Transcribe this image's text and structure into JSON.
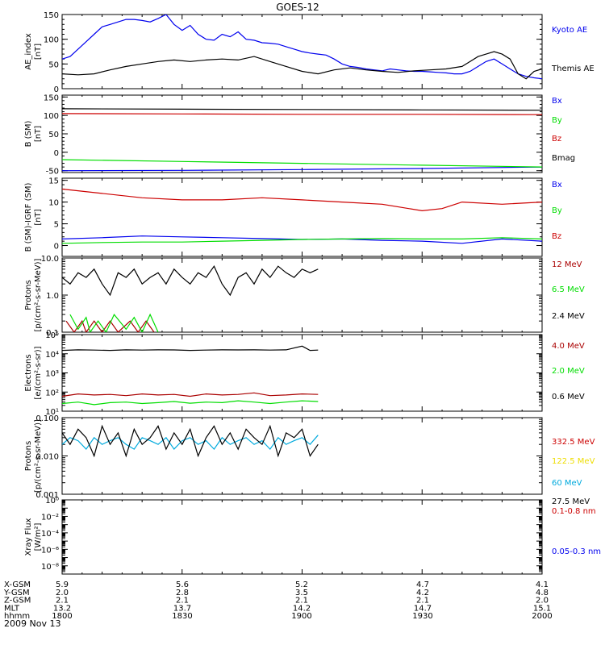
{
  "title": "GOES-12",
  "date_label": "2009 Nov 13",
  "ephemeris": {
    "rows": [
      {
        "label": "X-GSM",
        "values": [
          "5.9",
          "5.6",
          "5.2",
          "4.7",
          "4.1"
        ]
      },
      {
        "label": "Y-GSM",
        "values": [
          "2.0",
          "2.8",
          "3.5",
          "4.2",
          "4.8"
        ]
      },
      {
        "label": "Z-GSM",
        "values": [
          "2.1",
          "2.1",
          "2.1",
          "2.1",
          "2.0"
        ]
      },
      {
        "label": "MLT",
        "values": [
          "13.2",
          "13.7",
          "14.2",
          "14.7",
          "15.1"
        ]
      },
      {
        "label": "hhmm",
        "values": [
          "1800",
          "1830",
          "1900",
          "1930",
          "2000"
        ]
      }
    ]
  },
  "chart_data": [
    {
      "type": "line",
      "ylabel": [
        "AE_index",
        "[nT]"
      ],
      "x_range_minutes": [
        0,
        120
      ],
      "ylim": [
        0,
        150
      ],
      "yticks": [
        0,
        50,
        100,
        150
      ],
      "ytick_labels": [
        "0",
        "50",
        "100",
        "150"
      ],
      "series": [
        {
          "name": "Kyoto AE",
          "color": "#0000ee",
          "x": [
            0,
            2,
            4,
            6,
            8,
            10,
            12,
            14,
            16,
            18,
            20,
            22,
            24,
            26,
            28,
            30,
            32,
            34,
            36,
            38,
            40,
            42,
            44,
            46,
            48,
            50,
            52,
            54,
            56,
            58,
            60,
            62,
            64,
            66,
            68,
            70,
            72,
            74,
            76,
            78,
            80,
            82,
            84,
            86,
            88,
            90,
            92,
            94,
            96,
            98,
            100,
            102,
            104,
            106,
            108,
            110,
            112,
            114,
            116,
            118,
            120
          ],
          "y": [
            60,
            65,
            80,
            95,
            110,
            125,
            130,
            135,
            140,
            140,
            138,
            135,
            142,
            150,
            130,
            118,
            128,
            110,
            100,
            98,
            110,
            105,
            115,
            100,
            98,
            93,
            92,
            90,
            85,
            80,
            75,
            72,
            70,
            68,
            60,
            50,
            45,
            43,
            40,
            38,
            36,
            40,
            38,
            36,
            35,
            35,
            34,
            33,
            32,
            30,
            30,
            35,
            45,
            55,
            60,
            50,
            40,
            30,
            25,
            22,
            20
          ]
        },
        {
          "name": "Themis AE",
          "color": "#000000",
          "x": [
            0,
            4,
            8,
            12,
            16,
            20,
            24,
            28,
            32,
            36,
            40,
            44,
            48,
            52,
            56,
            60,
            64,
            68,
            72,
            76,
            80,
            84,
            88,
            92,
            96,
            100,
            102,
            104,
            106,
            108,
            110,
            112,
            114,
            116,
            118,
            120
          ],
          "y": [
            30,
            28,
            30,
            38,
            45,
            50,
            55,
            58,
            55,
            58,
            60,
            58,
            65,
            55,
            45,
            35,
            30,
            38,
            42,
            38,
            35,
            33,
            36,
            38,
            40,
            45,
            55,
            65,
            70,
            75,
            70,
            60,
            30,
            20,
            35,
            40
          ]
        }
      ]
    },
    {
      "type": "line",
      "ylabel": [
        "B (SM)",
        "[nT]"
      ],
      "x_range_minutes": [
        0,
        120
      ],
      "ylim": [
        -55,
        155
      ],
      "yticks": [
        -50,
        0,
        50,
        100,
        150
      ],
      "ytick_labels": [
        "-50",
        "0",
        "50",
        "100",
        "150"
      ],
      "series": [
        {
          "name": "Bx",
          "color": "#0000ee",
          "x": [
            0,
            30,
            60,
            90,
            120
          ],
          "y": [
            -50,
            -49,
            -47,
            -44,
            -40
          ]
        },
        {
          "name": "By",
          "color": "#00dd00",
          "x": [
            0,
            30,
            60,
            90,
            120
          ],
          "y": [
            -20,
            -25,
            -30,
            -35,
            -40
          ]
        },
        {
          "name": "Bz",
          "color": "#cc0000",
          "x": [
            0,
            30,
            60,
            90,
            120
          ],
          "y": [
            105,
            104,
            103,
            103,
            102
          ]
        },
        {
          "name": "Bmag",
          "color": "#000000",
          "x": [
            0,
            30,
            60,
            90,
            120
          ],
          "y": [
            118,
            117,
            116,
            115,
            114
          ]
        }
      ]
    },
    {
      "type": "line",
      "ylabel": [
        "B (SM)-IGRF (SM)",
        "[nT]"
      ],
      "x_range_minutes": [
        0,
        120
      ],
      "ylim": [
        -2.5,
        15.5
      ],
      "yticks": [
        0,
        5,
        10,
        15
      ],
      "ytick_labels": [
        "0",
        "5",
        "10",
        "15"
      ],
      "series": [
        {
          "name": "Bx",
          "color": "#0000ee",
          "x": [
            0,
            10,
            20,
            30,
            40,
            50,
            60,
            70,
            80,
            90,
            100,
            110,
            120
          ],
          "y": [
            1.5,
            1.8,
            2.2,
            2.0,
            1.8,
            1.6,
            1.4,
            1.5,
            1.2,
            1.0,
            0.5,
            1.5,
            1.0
          ]
        },
        {
          "name": "By",
          "color": "#00dd00",
          "x": [
            0,
            10,
            20,
            30,
            40,
            50,
            60,
            70,
            80,
            90,
            100,
            110,
            120
          ],
          "y": [
            0.5,
            0.7,
            0.8,
            0.8,
            1.0,
            1.2,
            1.4,
            1.5,
            1.6,
            1.5,
            1.5,
            1.8,
            1.5
          ]
        },
        {
          "name": "Bz",
          "color": "#cc0000",
          "x": [
            0,
            10,
            20,
            30,
            40,
            50,
            60,
            70,
            80,
            90,
            95,
            100,
            110,
            120
          ],
          "y": [
            13,
            12,
            11,
            10.5,
            10.5,
            11,
            10.5,
            10,
            9.5,
            8,
            8.5,
            10,
            9.5,
            10
          ]
        }
      ]
    },
    {
      "type": "line",
      "scale": "log",
      "ylabel": [
        "Protons",
        "[p/(cm²-s-sr-MeV)]"
      ],
      "x_range_minutes": [
        0,
        120
      ],
      "ylim": [
        0.1,
        10
      ],
      "yticks": [
        0.1,
        1,
        10
      ],
      "ytick_labels": [
        "0.1",
        "1.0",
        "10.0"
      ],
      "series": [
        {
          "name": "12 MeV",
          "color": "#aa0000",
          "x": [
            1,
            3,
            5,
            6,
            8,
            10,
            12,
            14,
            17,
            19,
            21,
            23
          ],
          "y": [
            0.2,
            0.1,
            0.2,
            0.1,
            0.2,
            0.1,
            0.2,
            0.1,
            0.2,
            0.1,
            0.2,
            0.1
          ]
        },
        {
          "name": "6.5 MeV",
          "color": "#00dd00",
          "x": [
            2,
            4,
            6,
            7,
            9,
            11,
            13,
            16,
            18,
            20,
            22,
            24
          ],
          "y": [
            0.3,
            0.12,
            0.25,
            0.1,
            0.2,
            0.1,
            0.3,
            0.12,
            0.25,
            0.1,
            0.3,
            0.1
          ]
        },
        {
          "name": "2.4 MeV",
          "color": "#000000",
          "x": [
            0,
            2,
            4,
            6,
            8,
            10,
            12,
            14,
            16,
            18,
            20,
            22,
            24,
            26,
            28,
            30,
            32,
            34,
            36,
            38,
            40,
            42,
            44,
            46,
            48,
            50,
            52,
            54,
            56,
            58,
            60,
            62,
            64
          ],
          "y": [
            3,
            2,
            4,
            3,
            5,
            2,
            1,
            4,
            3,
            5,
            2,
            3,
            4,
            2,
            5,
            3,
            2,
            4,
            3,
            6,
            2,
            1,
            3,
            4,
            2,
            5,
            3,
            6,
            4,
            3,
            5,
            4,
            5
          ]
        }
      ]
    },
    {
      "type": "line",
      "scale": "log",
      "ylabel": [
        "Electrons",
        "[e/(cm²-s-sr)]"
      ],
      "x_range_minutes": [
        0,
        120
      ],
      "ylim": [
        10,
        100000
      ],
      "yticks": [
        10,
        100,
        1000,
        10000,
        100000
      ],
      "ytick_labels": [
        "10¹",
        "10²",
        "10³",
        "10⁴",
        "10⁵"
      ],
      "series": [
        {
          "name": "4.0 MeV",
          "color": "#aa0000",
          "x": [
            0,
            4,
            8,
            12,
            16,
            20,
            24,
            28,
            32,
            36,
            40,
            44,
            48,
            52,
            56,
            60,
            64
          ],
          "y": [
            60,
            80,
            70,
            75,
            65,
            80,
            70,
            75,
            60,
            80,
            70,
            75,
            90,
            65,
            70,
            80,
            75
          ]
        },
        {
          "name": "2.0 MeV",
          "color": "#00dd00",
          "x": [
            0,
            4,
            8,
            12,
            16,
            20,
            24,
            28,
            32,
            36,
            40,
            44,
            48,
            52,
            56,
            60,
            64
          ],
          "y": [
            25,
            30,
            22,
            28,
            30,
            25,
            28,
            32,
            26,
            30,
            28,
            35,
            30,
            25,
            30,
            35,
            32
          ]
        },
        {
          "name": "0.6 MeV",
          "color": "#000000",
          "x": [
            0,
            4,
            8,
            12,
            16,
            20,
            24,
            28,
            32,
            36,
            40,
            44,
            48,
            52,
            56,
            60,
            62,
            64
          ],
          "y": [
            15000,
            16000,
            15500,
            15000,
            16000,
            15500,
            16000,
            15800,
            15000,
            15500,
            16000,
            15800,
            16000,
            15500,
            16000,
            25000,
            15000,
            15500
          ]
        }
      ]
    },
    {
      "type": "line",
      "scale": "log",
      "ylabel": [
        "Protons",
        "[p/(cm²-s-sr-MeV)]"
      ],
      "x_range_minutes": [
        0,
        120
      ],
      "ylim": [
        0.001,
        0.1
      ],
      "yticks": [
        0.001,
        0.01,
        0.1
      ],
      "ytick_labels": [
        "0.001",
        "0.010",
        "0.100"
      ],
      "series": [
        {
          "name": "332.5 MeV",
          "color": "#cc0000",
          "x": [],
          "y": []
        },
        {
          "name": "122.5 MeV",
          "color": "#eedd00",
          "x": [],
          "y": []
        },
        {
          "name": "60 MeV",
          "color": "#00aadd",
          "x": [
            0,
            2,
            4,
            6,
            8,
            10,
            12,
            14,
            16,
            18,
            20,
            22,
            24,
            26,
            28,
            30,
            32,
            34,
            36,
            38,
            40,
            42,
            44,
            46,
            48,
            50,
            52,
            54,
            56,
            58,
            60,
            62,
            64
          ],
          "y": [
            0.02,
            0.03,
            0.025,
            0.015,
            0.03,
            0.02,
            0.025,
            0.03,
            0.02,
            0.015,
            0.03,
            0.025,
            0.02,
            0.03,
            0.015,
            0.025,
            0.03,
            0.02,
            0.025,
            0.015,
            0.03,
            0.02,
            0.025,
            0.03,
            0.02,
            0.025,
            0.015,
            0.03,
            0.02,
            0.025,
            0.03,
            0.02,
            0.035
          ]
        },
        {
          "name": "27.5 MeV",
          "color": "#000000",
          "x": [
            0,
            2,
            4,
            6,
            8,
            10,
            12,
            14,
            16,
            18,
            20,
            22,
            24,
            26,
            28,
            30,
            32,
            34,
            36,
            38,
            40,
            42,
            44,
            46,
            48,
            50,
            52,
            54,
            56,
            58,
            60,
            62,
            64
          ],
          "y": [
            0.04,
            0.02,
            0.05,
            0.03,
            0.01,
            0.06,
            0.02,
            0.04,
            0.01,
            0.05,
            0.02,
            0.03,
            0.06,
            0.015,
            0.04,
            0.02,
            0.05,
            0.01,
            0.03,
            0.06,
            0.02,
            0.04,
            0.015,
            0.05,
            0.03,
            0.02,
            0.06,
            0.01,
            0.04,
            0.03,
            0.05,
            0.01,
            0.02
          ]
        }
      ]
    },
    {
      "type": "line",
      "scale": "log",
      "ylabel": [
        "Xray Flux",
        "[W/m²]"
      ],
      "x_range_minutes": [
        0,
        120
      ],
      "ylim": [
        1e-09,
        1
      ],
      "yticks": [
        1e-09,
        1e-08,
        1e-07,
        1e-06,
        1e-05,
        0.0001,
        0.001,
        0.01,
        0.1,
        1
      ],
      "ytick_labels": [
        "",
        "10⁻⁸",
        "",
        "10⁻⁶",
        "",
        "10⁻⁴",
        "",
        "10⁻²",
        "",
        "10⁰"
      ],
      "series": [
        {
          "name": "0.1-0.8 nm",
          "color": "#cc0000",
          "x": [],
          "y": []
        },
        {
          "name": "0.05-0.3 nm",
          "color": "#0000ee",
          "x": [],
          "y": []
        }
      ]
    }
  ]
}
